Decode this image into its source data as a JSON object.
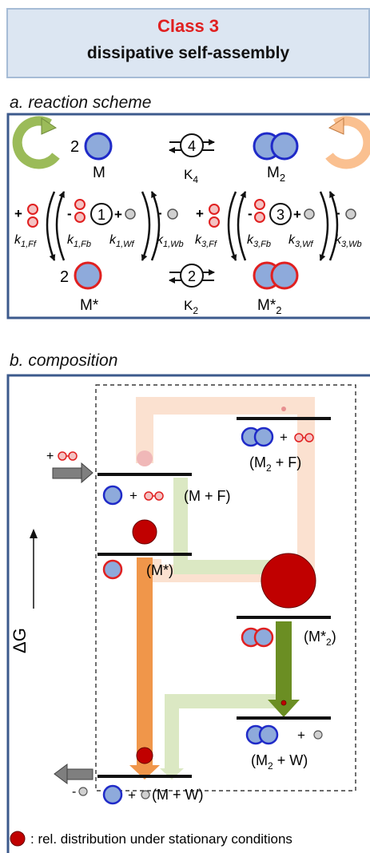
{
  "header": {
    "class_label": "Class 3",
    "subtitle": "dissipative self-assembly"
  },
  "section_a": {
    "title": "a. reaction scheme",
    "top_coeff": "2",
    "bottom_coeff": "2",
    "M": "M",
    "M2_base": "M",
    "M2_sub": "2",
    "Mstar": "M*",
    "Mstar2_base": "M*",
    "Mstar2_sub": "2",
    "step_top": "4",
    "step_bottom": "2",
    "step_left": "1",
    "step_right": "3",
    "K4_base": "K",
    "K4_sub": "4",
    "K2_base": "K",
    "K2_sub": "2",
    "plus": "+",
    "minus": "-",
    "k1Ff_base": "k",
    "k1Ff_sub": "1,Ff",
    "k1Fb_base": "k",
    "k1Fb_sub": "1,Fb",
    "k1Wf_base": "k",
    "k1Wf_sub": "1,Wf",
    "k1Wb_base": "k",
    "k1Wb_sub": "1,Wb",
    "k3Ff_base": "k",
    "k3Ff_sub": "3,Ff",
    "k3Fb_base": "k",
    "k3Fb_sub": "3,Fb",
    "k3Wf_base": "k",
    "k3Wf_sub": "3,Wf",
    "k3Wb_base": "k",
    "k3Wb_sub": "3,Wb"
  },
  "section_b": {
    "title": "b. composition",
    "axis_label": "ΔG",
    "plus": "+",
    "minus": "-",
    "level_MF": "(M + F)",
    "level_Mstar": "(M*)",
    "level_M2F_a": "(M",
    "level_M2F_sub": "2",
    "level_M2F_b": " + F)",
    "level_Mstar2_a": "(M*",
    "level_Mstar2_sub": "2",
    "level_Mstar2_b": ")",
    "level_M2W_a": "(M",
    "level_M2W_sub": "2",
    "level_M2W_b": " + W)",
    "level_MW": "(M + W)",
    "distribution": {
      "M_plus_F": 0.03,
      "M_star": 0.17,
      "M2_plus_F": 0.005,
      "M_star2": 0.7,
      "M2_plus_W": 0.01,
      "M_plus_W": 0.08
    }
  },
  "legend": {
    "text": ": rel. distribution under stationary conditions"
  },
  "colors": {
    "monomer_fill": "#8eaadb",
    "monomer_blue_border": "#1f2ac8",
    "monomer_red_border": "#e02020",
    "dot_red": "#c00000",
    "arrow_green": "#6b8e23",
    "arrow_orange": "#f0964a",
    "frame_blue": "#3c5a8c"
  }
}
